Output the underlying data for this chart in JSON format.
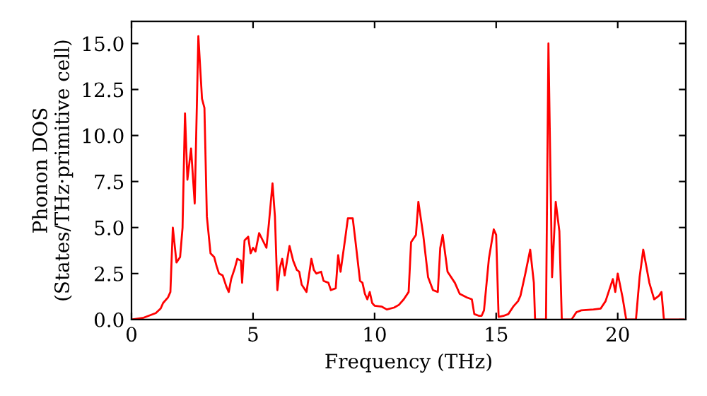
{
  "chart_data": {
    "type": "line",
    "xlabel": "Frequency (THz)",
    "ylabel": "Phonon DOS\n(States/THz·primitive cell)",
    "xlim": [
      0,
      22.8
    ],
    "ylim": [
      0,
      16.2
    ],
    "xticks": [
      0,
      5,
      10,
      15,
      20
    ],
    "yticks": [
      {
        "value": 0,
        "label": "0.0"
      },
      {
        "value": 2.5,
        "label": "2.5"
      },
      {
        "value": 5,
        "label": "5.0"
      },
      {
        "value": 7.5,
        "label": "7.5"
      },
      {
        "value": 10,
        "label": "10.0"
      },
      {
        "value": 12.5,
        "label": "12.5"
      },
      {
        "value": 15,
        "label": "15.0"
      }
    ],
    "grid": false,
    "line_style": "solid",
    "series": [
      {
        "color": "#ff0000",
        "x": [
          0,
          0.5,
          1.0,
          1.2,
          1.3,
          1.5,
          1.6,
          1.7,
          1.85,
          2.0,
          2.1,
          2.2,
          2.3,
          2.45,
          2.6,
          2.75,
          2.9,
          3.0,
          3.1,
          3.25,
          3.4,
          3.5,
          3.6,
          3.75,
          3.9,
          4.0,
          4.1,
          4.25,
          4.35,
          4.5,
          4.55,
          4.65,
          4.8,
          4.9,
          5.0,
          5.1,
          5.25,
          5.4,
          5.55,
          5.65,
          5.8,
          5.9,
          6.0,
          6.1,
          6.2,
          6.3,
          6.5,
          6.65,
          6.8,
          6.9,
          7.0,
          7.2,
          7.3,
          7.4,
          7.5,
          7.6,
          7.8,
          7.9,
          8.1,
          8.2,
          8.4,
          8.5,
          8.6,
          8.8,
          8.9,
          9.1,
          9.2,
          9.4,
          9.5,
          9.6,
          9.7,
          9.8,
          9.9,
          10.0,
          10.3,
          10.5,
          10.8,
          11.0,
          11.2,
          11.4,
          11.5,
          11.7,
          11.8,
          12.0,
          12.2,
          12.4,
          12.6,
          12.7,
          12.8,
          13.0,
          13.3,
          13.5,
          13.8,
          14.0,
          14.1,
          14.3,
          14.4,
          14.5,
          14.7,
          14.9,
          15.0,
          15.1,
          15.3,
          15.5,
          15.7,
          15.9,
          16.0,
          16.2,
          16.4,
          16.55,
          16.6,
          17.05,
          17.15,
          17.3,
          17.45,
          17.6,
          17.7,
          18.1,
          18.3,
          18.5,
          19.0,
          19.3,
          19.5,
          19.8,
          19.9,
          20.0,
          20.2,
          20.35,
          20.5,
          20.75,
          20.9,
          21.05,
          21.3,
          21.5,
          21.7,
          21.8,
          21.9,
          22.7
        ],
        "values": [
          0,
          0.1,
          0.35,
          0.6,
          0.9,
          1.2,
          1.5,
          5.0,
          3.1,
          3.4,
          5.0,
          11.2,
          7.6,
          9.3,
          6.3,
          15.4,
          12.0,
          11.5,
          5.6,
          3.6,
          3.4,
          2.9,
          2.5,
          2.4,
          1.8,
          1.5,
          2.2,
          2.8,
          3.3,
          3.2,
          2.0,
          4.3,
          4.5,
          3.6,
          3.9,
          3.7,
          4.7,
          4.3,
          3.9,
          5.2,
          7.4,
          5.6,
          1.6,
          2.8,
          3.3,
          2.4,
          4.0,
          3.2,
          2.7,
          2.6,
          1.9,
          1.5,
          2.4,
          3.3,
          2.7,
          2.5,
          2.6,
          2.1,
          2.0,
          1.6,
          1.7,
          3.5,
          2.6,
          4.5,
          5.5,
          5.5,
          4.4,
          2.1,
          2.0,
          1.4,
          1.1,
          1.5,
          0.9,
          0.75,
          0.7,
          0.55,
          0.65,
          0.8,
          1.1,
          1.5,
          4.2,
          4.6,
          6.4,
          4.6,
          2.3,
          1.6,
          1.5,
          3.9,
          4.6,
          2.6,
          2.0,
          1.4,
          1.2,
          1.1,
          0.3,
          0.2,
          0.2,
          0.5,
          3.3,
          4.9,
          4.6,
          0.15,
          0.2,
          0.3,
          0.7,
          1.0,
          1.3,
          2.5,
          3.8,
          2.0,
          0,
          0,
          15.0,
          2.3,
          6.4,
          4.8,
          0,
          0,
          0.4,
          0.5,
          0.55,
          0.6,
          1.0,
          2.2,
          1.5,
          2.5,
          1.2,
          0,
          0,
          0,
          2.3,
          3.8,
          2.0,
          1.1,
          1.3,
          1.5,
          0,
          0
        ]
      }
    ]
  }
}
